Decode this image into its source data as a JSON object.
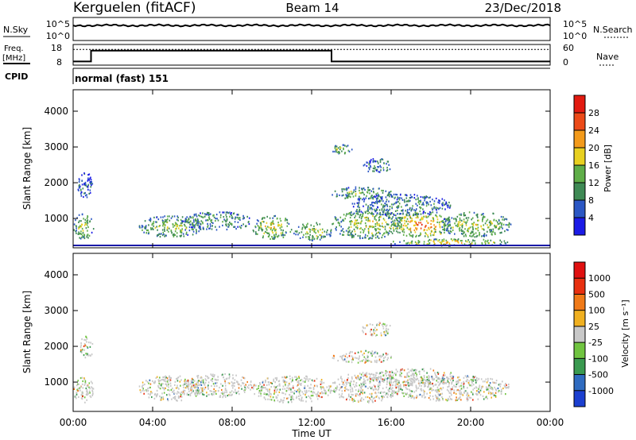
{
  "header": {
    "site": "Kerguelen (fitACF)",
    "beam": "Beam 14",
    "date": "23/Dec/2018"
  },
  "noise_panel": {
    "left_label": "N.Sky",
    "left_ticks": [
      "10^5",
      "10^0"
    ],
    "right_ticks": [
      "10^5",
      "10^0"
    ],
    "right_label": "N.Search"
  },
  "freq_panel": {
    "left_label_1": "Freq.",
    "left_label_2": "[MHz]",
    "left_ticks": [
      "18",
      "8"
    ],
    "right_ticks": [
      "60",
      "0"
    ],
    "right_label": "Nave",
    "freq_level": [
      {
        "t": 0.0,
        "v": 0.15
      },
      {
        "t": 0.9,
        "v": 0.15
      },
      {
        "t": 0.9,
        "v": 0.72
      },
      {
        "t": 13.0,
        "v": 0.72
      },
      {
        "t": 13.0,
        "v": 0.15
      },
      {
        "t": 24.0,
        "v": 0.15
      }
    ],
    "nave_level": 0.78
  },
  "cpid": {
    "label": "CPID",
    "program": "normal (fast) 151"
  },
  "colors": {
    "noise_trace": "#000000",
    "ground_line": "#1a1aa8"
  },
  "chart_data": [
    {
      "type": "heatmap",
      "quantity": "Power",
      "ylabel": "Slant Range [km]",
      "xlabel": "",
      "ylim": [
        180,
        4600
      ],
      "xlim": [
        0,
        24
      ],
      "y_ticks": [
        "1000",
        "2000",
        "3000",
        "4000"
      ],
      "colorbar_label": "Power [dB]",
      "colorbar_ticks": [
        "4",
        "8",
        "12",
        "16",
        "20",
        "24",
        "28"
      ],
      "colorbar_colors": [
        "#1b1be6",
        "#2b57c4",
        "#3f8a55",
        "#5fae48",
        "#e8d020",
        "#f39a1a",
        "#ec4a18",
        "#e21a10"
      ],
      "echo_regions": [
        {
          "t0": 0.0,
          "t1": 1.0,
          "r0": 450,
          "r1": 1150,
          "level": 0.55
        },
        {
          "t0": 0.2,
          "t1": 1.0,
          "r0": 1600,
          "r1": 2300,
          "level": 0.2
        },
        {
          "t0": 3.3,
          "t1": 6.5,
          "r0": 500,
          "r1": 1100,
          "level": 0.55
        },
        {
          "t0": 5.5,
          "t1": 9.0,
          "r0": 700,
          "r1": 1200,
          "level": 0.4
        },
        {
          "t0": 9.0,
          "t1": 11.0,
          "r0": 450,
          "r1": 1100,
          "level": 0.65
        },
        {
          "t0": 11.0,
          "t1": 13.0,
          "r0": 400,
          "r1": 900,
          "level": 0.55
        },
        {
          "t0": 13.0,
          "t1": 16.5,
          "r0": 450,
          "r1": 1300,
          "level": 0.6
        },
        {
          "t0": 16.0,
          "t1": 19.0,
          "r0": 500,
          "r1": 1200,
          "level": 0.85
        },
        {
          "t0": 18.5,
          "t1": 22.0,
          "r0": 500,
          "r1": 1200,
          "level": 0.6
        },
        {
          "t0": 13.0,
          "t1": 16.0,
          "r0": 1550,
          "r1": 1900,
          "level": 0.5
        },
        {
          "t0": 14.0,
          "t1": 19.0,
          "r0": 1100,
          "r1": 1700,
          "level": 0.35
        },
        {
          "t0": 14.5,
          "t1": 16.0,
          "r0": 2300,
          "r1": 2700,
          "level": 0.35
        },
        {
          "t0": 13.0,
          "t1": 14.0,
          "r0": 2800,
          "r1": 3100,
          "level": 0.55
        },
        {
          "t0": 16.0,
          "t1": 22.0,
          "r0": 250,
          "r1": 450,
          "level": 0.75
        }
      ]
    },
    {
      "type": "heatmap",
      "quantity": "Velocity",
      "ylabel": "Slant Range [km]",
      "xlabel": "Time UT",
      "ylim": [
        180,
        4600
      ],
      "xlim": [
        0,
        24
      ],
      "y_ticks": [
        "1000",
        "2000",
        "3000",
        "4000"
      ],
      "x_ticks": [
        "00:00",
        "04:00",
        "08:00",
        "12:00",
        "16:00",
        "20:00",
        "00:00"
      ],
      "colorbar_label": "Velocity [m s⁻¹]",
      "colorbar_ticks": [
        "1000",
        "500",
        "100",
        "25",
        "-25",
        "-100",
        "-500",
        "-1000"
      ],
      "colorbar_colors": [
        "#1b3fd0",
        "#2f6bc0",
        "#3a9a50",
        "#70c440",
        "#c8c8c8",
        "#f0b020",
        "#f07a18",
        "#e83010",
        "#e01010"
      ],
      "echo_regions": [
        {
          "t0": 0.0,
          "t1": 1.0,
          "r0": 450,
          "r1": 1150,
          "level": 0.45
        },
        {
          "t0": 3.3,
          "t1": 6.5,
          "r0": 500,
          "r1": 1200,
          "level": 0.45
        },
        {
          "t0": 5.5,
          "t1": 9.0,
          "r0": 600,
          "r1": 1250,
          "level": 0.45
        },
        {
          "t0": 9.0,
          "t1": 13.0,
          "r0": 450,
          "r1": 1200,
          "level": 0.45
        },
        {
          "t0": 13.0,
          "t1": 16.5,
          "r0": 450,
          "r1": 1300,
          "level": 0.45
        },
        {
          "t0": 16.0,
          "t1": 22.0,
          "r0": 500,
          "r1": 1200,
          "level": 0.5
        },
        {
          "t0": 13.0,
          "t1": 16.0,
          "r0": 1550,
          "r1": 1900,
          "level": 0.45
        },
        {
          "t0": 15.0,
          "t1": 19.5,
          "r0": 900,
          "r1": 1400,
          "level": 0.35
        },
        {
          "t0": 14.5,
          "t1": 16.0,
          "r0": 2300,
          "r1": 2700,
          "level": 0.35
        },
        {
          "t0": 0.3,
          "t1": 1.0,
          "r0": 1700,
          "r1": 2300,
          "level": 0.45
        }
      ]
    }
  ]
}
